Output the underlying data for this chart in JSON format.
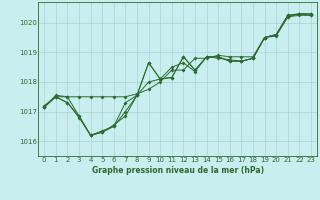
{
  "title": "Graphe pression niveau de la mer (hPa)",
  "background_color": "#c8eef0",
  "line_color": "#2d6a2d",
  "grid_color": "#aad4d4",
  "xlim": [
    -0.5,
    23.5
  ],
  "ylim": [
    1015.5,
    1020.7
  ],
  "yticks": [
    1016,
    1017,
    1018,
    1019,
    1020
  ],
  "xticks": [
    0,
    1,
    2,
    3,
    4,
    5,
    6,
    7,
    8,
    9,
    10,
    11,
    12,
    13,
    14,
    15,
    16,
    17,
    18,
    19,
    20,
    21,
    22,
    23
  ],
  "series": [
    [
      1017.2,
      1017.5,
      1017.3,
      1016.8,
      1016.2,
      1016.3,
      1016.5,
      1017.0,
      1017.55,
      1018.0,
      1018.1,
      1018.5,
      1018.65,
      1018.35,
      1018.85,
      1018.8,
      1018.75,
      1018.7,
      1018.8,
      1019.5,
      1019.6,
      1020.2,
      1020.3,
      1020.25
    ],
    [
      1017.15,
      1017.5,
      1017.3,
      1016.85,
      1016.2,
      1016.35,
      1016.5,
      1017.3,
      1017.55,
      1018.65,
      1018.1,
      1018.15,
      1018.85,
      1018.4,
      1018.85,
      1018.85,
      1018.7,
      1018.7,
      1018.8,
      1019.5,
      1019.6,
      1020.25,
      1020.3,
      1020.3
    ],
    [
      1017.15,
      1017.5,
      1017.5,
      1016.85,
      1016.2,
      1016.3,
      1016.55,
      1016.85,
      1017.55,
      1018.65,
      1018.1,
      1018.15,
      1018.85,
      1018.4,
      1018.85,
      1018.85,
      1018.7,
      1018.7,
      1018.8,
      1019.5,
      1019.6,
      1020.25,
      1020.3,
      1020.3
    ],
    [
      1017.15,
      1017.55,
      1017.5,
      1017.5,
      1017.5,
      1017.5,
      1017.5,
      1017.5,
      1017.6,
      1017.75,
      1018.0,
      1018.4,
      1018.4,
      1018.8,
      1018.8,
      1018.9,
      1018.85,
      1018.85,
      1018.85,
      1019.5,
      1019.55,
      1020.2,
      1020.25,
      1020.25
    ]
  ]
}
